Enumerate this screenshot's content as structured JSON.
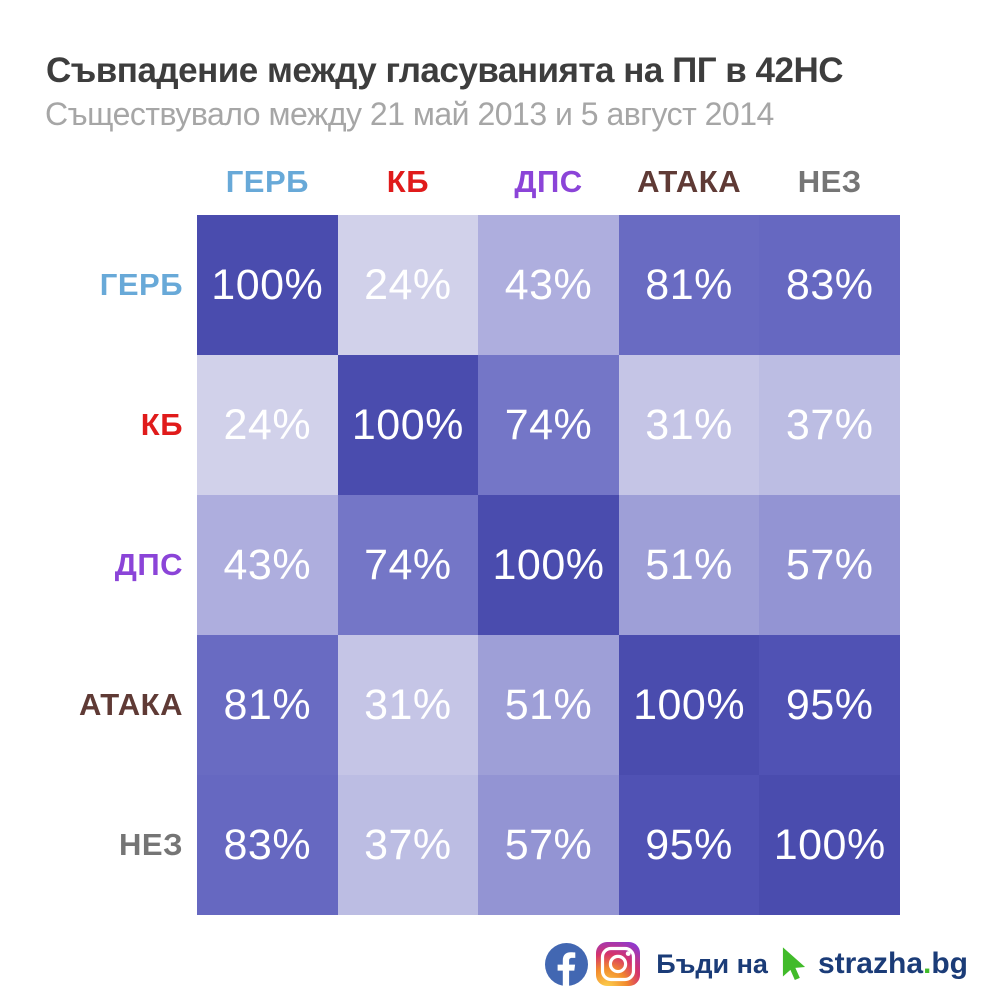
{
  "header": {
    "title": "Съвпадение между гласуванията на ПГ в 42НС",
    "subtitle": "Съществувало между 21 май 2013 и 5 август 2014"
  },
  "chart_data": {
    "type": "heatmap",
    "title": "Съвпадение между гласуванията на ПГ в 42НС",
    "subtitle": "Съществувало между 21 май 2013 и 5 август 2014",
    "unit": "%",
    "categories": [
      "ГЕРБ",
      "КБ",
      "ДПС",
      "АТАКА",
      "НЕЗ"
    ],
    "party_colors": {
      "ГЕРБ": "#68a9d8",
      "КБ": "#e01b1b",
      "ДПС": "#8b44d8",
      "АТАКА": "#5f3a35",
      "НЕЗ": "#757575"
    },
    "matrix": [
      [
        100,
        24,
        43,
        81,
        83
      ],
      [
        24,
        100,
        74,
        31,
        37
      ],
      [
        43,
        74,
        100,
        51,
        57
      ],
      [
        81,
        31,
        51,
        100,
        95
      ],
      [
        83,
        37,
        57,
        95,
        100
      ]
    ],
    "value_colors": {
      "24": "#d1d1ea",
      "31": "#c5c5e6",
      "37": "#bcbde3",
      "43": "#aeaede",
      "51": "#9e9fd7",
      "57": "#9394d3",
      "74": "#7476c7",
      "81": "#696bc2",
      "83": "#6668c1",
      "95": "#5052b4",
      "100": "#4a4cae"
    },
    "colorscale": {
      "min_value": 24,
      "max_value": 100,
      "min_color": "#d1d1ea",
      "max_color": "#4a4cae"
    },
    "cell_text_color": "#ffffff",
    "legend": "none",
    "grid": "off"
  },
  "footer": {
    "icons": [
      "facebook-icon",
      "instagram-icon",
      "cursor-icon"
    ],
    "facebook_color": "#4267b2",
    "cursor_color": "#41bb2a",
    "call_to_action": "Бъди на",
    "brand_name": "strazha",
    "brand_dot": ".",
    "brand_tld": "bg",
    "brand_color": "#1b3c78"
  }
}
